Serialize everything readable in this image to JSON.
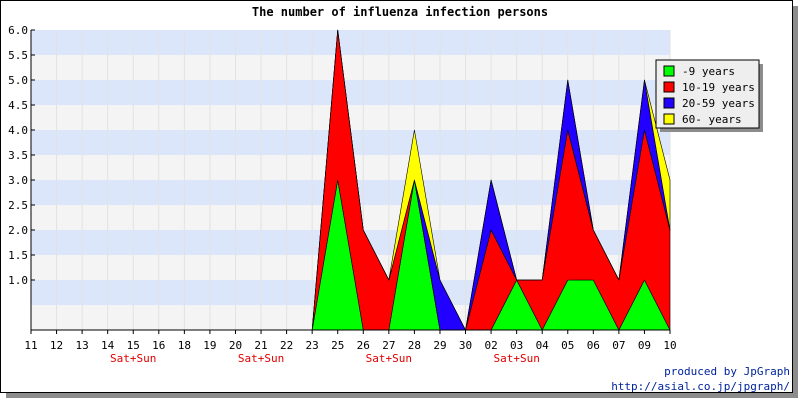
{
  "chart_data": {
    "type": "area",
    "stacked": true,
    "title": "The number of influenza infection persons",
    "categories": [
      "11",
      "12",
      "13",
      "14",
      "15",
      "16",
      "18",
      "19",
      "20",
      "21",
      "22",
      "23",
      "25",
      "26",
      "27",
      "28",
      "29",
      "30",
      "02",
      "03",
      "04",
      "05",
      "06",
      "07",
      "09",
      "10"
    ],
    "weekend_labels": [
      {
        "category_index": 4,
        "text": "Sat+Sun"
      },
      {
        "category_index": 9,
        "text": "Sat+Sun"
      },
      {
        "category_index": 14,
        "text": "Sat+Sun"
      },
      {
        "category_index": 19,
        "text": "Sat+Sun"
      }
    ],
    "series": [
      {
        "name": "-9 years",
        "color": "#00ff00",
        "values": [
          0,
          0,
          0,
          0,
          0,
          0,
          0,
          0,
          0,
          0,
          0,
          0,
          3,
          0,
          0,
          3,
          0,
          0,
          0,
          1,
          0,
          1,
          1,
          0,
          1,
          0
        ]
      },
      {
        "name": "10-19 years",
        "color": "#ff0000",
        "values": [
          0,
          0,
          0,
          0,
          0,
          0,
          0,
          0,
          0,
          0,
          0,
          0,
          3,
          2,
          1,
          0,
          0,
          0,
          2,
          0,
          1,
          3,
          1,
          1,
          3,
          2
        ]
      },
      {
        "name": "20-59 years",
        "color": "#2200ff",
        "values": [
          0,
          0,
          0,
          0,
          0,
          0,
          0,
          0,
          0,
          0,
          0,
          0,
          0,
          0,
          0,
          0,
          1,
          0,
          1,
          0,
          0,
          1,
          0,
          0,
          1,
          0
        ]
      },
      {
        "name": "60- years",
        "color": "#ffff00",
        "values": [
          0,
          0,
          0,
          0,
          0,
          0,
          0,
          0,
          0,
          0,
          0,
          0,
          0,
          0,
          0,
          1,
          0,
          0,
          0,
          0,
          0,
          0,
          0,
          0,
          0,
          1
        ]
      }
    ],
    "ylim": [
      0,
      6
    ],
    "yticks": [
      "1.0",
      "1.5",
      "2.0",
      "2.5",
      "3.0",
      "3.5",
      "4.0",
      "4.5",
      "5.0",
      "5.5",
      "6.0"
    ],
    "ytick_values": [
      1,
      1.5,
      2,
      2.5,
      3,
      3.5,
      4,
      4.5,
      5,
      5.5,
      6
    ],
    "grid": true,
    "band_colors": [
      "#f4f4f4",
      "#dce6fa"
    ],
    "legend_position": "top-right"
  },
  "credits": {
    "line1": "produced by JpGraph",
    "line2": "http://asial.co.jp/jpgraph/"
  }
}
